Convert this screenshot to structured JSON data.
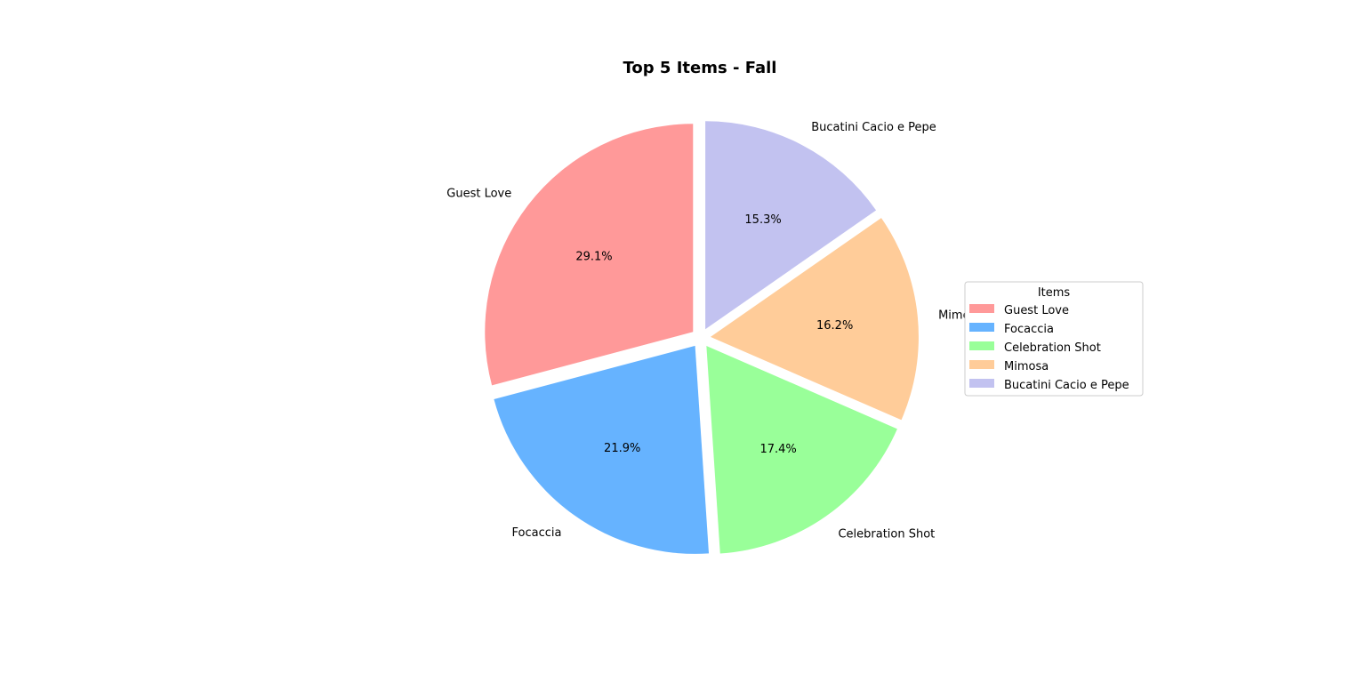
{
  "chart_data": {
    "type": "pie",
    "title": "Top 5 Items - Fall",
    "categories": [
      "Guest Love",
      "Focaccia",
      "Celebration Shot",
      "Mimosa",
      "Bucatini Cacio e Pepe"
    ],
    "values": [
      29.1,
      21.9,
      17.4,
      16.2,
      15.3
    ],
    "value_labels": [
      "29.1%",
      "21.9%",
      "17.4%",
      "16.2%",
      "15.3%"
    ],
    "colors": [
      "#ff9999",
      "#66b3ff",
      "#99ff99",
      "#ffcc99",
      "#c2c2f0"
    ],
    "start_angle_deg": 90,
    "direction": "counterclockwise",
    "exploded": true,
    "legend": {
      "title": "Items",
      "placement": "center-right"
    }
  }
}
